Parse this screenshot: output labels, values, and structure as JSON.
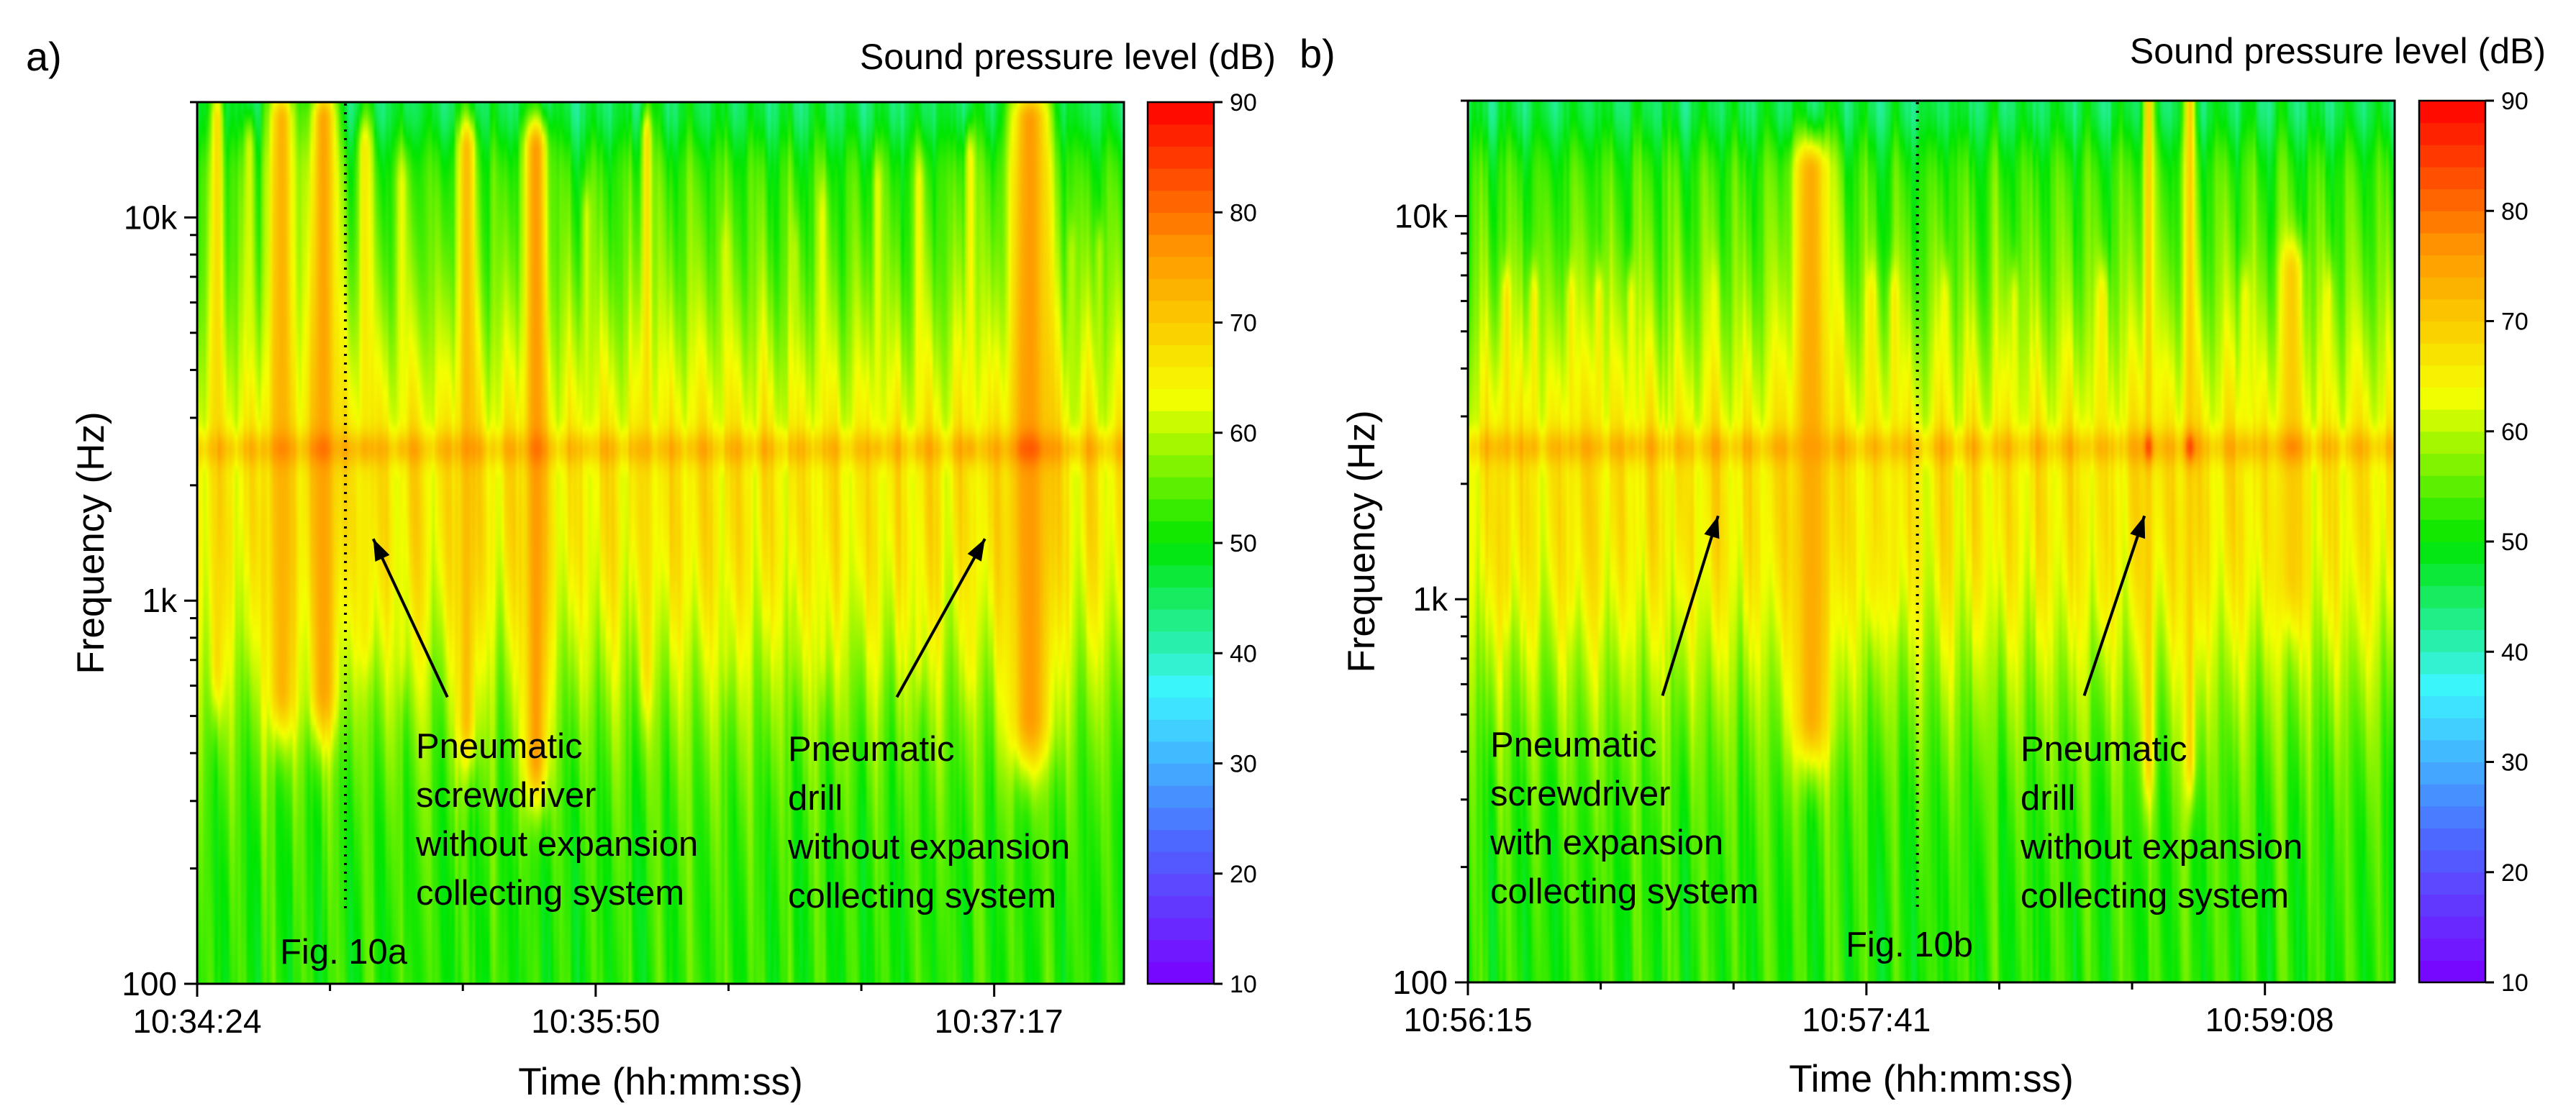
{
  "colors": {
    "colormap": [
      "#7b00ff",
      "#4b6bff",
      "#3cf5ff",
      "#00e600",
      "#f5ff00",
      "#ff9600",
      "#ff0000"
    ],
    "text": "#000000"
  },
  "chart_data": [
    {
      "type": "heatmap",
      "panel_label": "a)",
      "figure_label": "Fig. 10a",
      "title": "",
      "colorbar_label": "Sound pressure level (dB)",
      "colorbar_ticks": [
        "10",
        "20",
        "30",
        "40",
        "50",
        "60",
        "70",
        "80",
        "90"
      ],
      "clim": [
        10,
        90
      ],
      "xlabel": "Time (hh:mm:ss)",
      "ylabel": "Frequency (Hz)",
      "x_ticks": [
        "10:34:24",
        "10:35:50",
        "10:37:17"
      ],
      "y_ticks": [
        "100",
        "1k",
        "10k"
      ],
      "ylim_hz": [
        100,
        20000
      ],
      "x_range_s": [
        0,
        200
      ],
      "x_tick_seconds": [
        0,
        86,
        173
      ],
      "marker_time_s": 32,
      "carrier_band_hz": 2500,
      "bursts": [
        {
          "t": 4,
          "w": 1.5,
          "base": 68,
          "peak": 72,
          "lo": 700,
          "hi": 18000
        },
        {
          "t": 11,
          "w": 1.2,
          "base": 62,
          "peak": 70,
          "lo": 1000,
          "hi": 15000
        },
        {
          "t": 18,
          "w": 3.0,
          "base": 73,
          "peak": 78,
          "lo": 600,
          "hi": 18000
        },
        {
          "t": 27,
          "w": 3.0,
          "base": 75,
          "peak": 80,
          "lo": 600,
          "hi": 18000
        },
        {
          "t": 36,
          "w": 1.6,
          "base": 66,
          "peak": 74,
          "lo": 900,
          "hi": 15000
        },
        {
          "t": 44,
          "w": 1.2,
          "base": 63,
          "peak": 72,
          "lo": 800,
          "hi": 12000
        },
        {
          "t": 58,
          "w": 2.0,
          "base": 72,
          "peak": 77,
          "lo": 500,
          "hi": 15000
        },
        {
          "t": 73,
          "w": 2.6,
          "base": 76,
          "peak": 80,
          "lo": 400,
          "hi": 15000
        },
        {
          "t": 84,
          "w": 1.0,
          "base": 62,
          "peak": 70,
          "lo": 800,
          "hi": 10000
        },
        {
          "t": 97,
          "w": 1.2,
          "base": 68,
          "peak": 74,
          "lo": 700,
          "hi": 16000
        },
        {
          "t": 114,
          "w": 1.0,
          "base": 62,
          "peak": 68,
          "lo": 800,
          "hi": 8000
        },
        {
          "t": 129,
          "w": 1.0,
          "base": 60,
          "peak": 66,
          "lo": 900,
          "hi": 8000
        },
        {
          "t": 135,
          "w": 1.0,
          "base": 63,
          "peak": 70,
          "lo": 800,
          "hi": 10000
        },
        {
          "t": 147,
          "w": 1.0,
          "base": 63,
          "peak": 72,
          "lo": 800,
          "hi": 12000
        },
        {
          "t": 156,
          "w": 1.0,
          "base": 64,
          "peak": 72,
          "lo": 800,
          "hi": 12000
        },
        {
          "t": 167,
          "w": 1.2,
          "base": 65,
          "peak": 74,
          "lo": 800,
          "hi": 14000
        },
        {
          "t": 180,
          "w": 4.5,
          "base": 76,
          "peak": 82,
          "lo": 500,
          "hi": 18000
        },
        {
          "t": 189,
          "w": 1.0,
          "base": 60,
          "peak": 70,
          "lo": 900,
          "hi": 8000
        },
        {
          "t": 195,
          "w": 1.0,
          "base": 60,
          "peak": 70,
          "lo": 900,
          "hi": 8000
        }
      ],
      "annotations": [
        {
          "lines": [
            "Pneumatic",
            "screwdriver",
            "without expansion",
            "collecting system"
          ],
          "arrow_from_s": 54,
          "arrow_from_hz": 560,
          "arrow_to_s": 38,
          "arrow_to_hz": 1450
        },
        {
          "lines": [
            "Pneumatic",
            "drill",
            "without expansion",
            "collecting system"
          ],
          "arrow_from_s": 151,
          "arrow_from_hz": 560,
          "arrow_to_s": 170,
          "arrow_to_hz": 1450
        }
      ]
    },
    {
      "type": "heatmap",
      "panel_label": "b)",
      "figure_label": "Fig. 10b",
      "title": "",
      "colorbar_label": "Sound pressure level (dB)",
      "colorbar_ticks": [
        "10",
        "20",
        "30",
        "40",
        "50",
        "60",
        "70",
        "80",
        "90"
      ],
      "clim": [
        10,
        90
      ],
      "xlabel": "Time (hh:mm:ss)",
      "ylabel": "Frequency (Hz)",
      "x_ticks": [
        "10:56:15",
        "10:57:41",
        "10:59:08"
      ],
      "y_ticks": [
        "100",
        "1k",
        "10k"
      ],
      "ylim_hz": [
        100,
        20000
      ],
      "x_range_s": [
        0,
        200
      ],
      "x_tick_seconds": [
        0,
        86,
        173
      ],
      "marker_time_s": 97,
      "carrier_band_hz": 2500,
      "bursts": [
        {
          "t": 8,
          "w": 1.0,
          "base": 68,
          "peak": 74,
          "lo": 1200,
          "hi": 6000
        },
        {
          "t": 14,
          "w": 1.0,
          "base": 66,
          "peak": 73,
          "lo": 1200,
          "hi": 6000
        },
        {
          "t": 22,
          "w": 1.0,
          "base": 66,
          "peak": 73,
          "lo": 1200,
          "hi": 6000
        },
        {
          "t": 28,
          "w": 1.0,
          "base": 66,
          "peak": 72,
          "lo": 1200,
          "hi": 6000
        },
        {
          "t": 35,
          "w": 1.0,
          "base": 64,
          "peak": 72,
          "lo": 1200,
          "hi": 6000
        },
        {
          "t": 53,
          "w": 1.0,
          "base": 63,
          "peak": 70,
          "lo": 1200,
          "hi": 6000
        },
        {
          "t": 74,
          "w": 4.0,
          "base": 74,
          "peak": 76,
          "lo": 500,
          "hi": 13000
        },
        {
          "t": 87,
          "w": 1.2,
          "base": 66,
          "peak": 72,
          "lo": 1200,
          "hi": 6000
        },
        {
          "t": 92,
          "w": 1.2,
          "base": 66,
          "peak": 72,
          "lo": 1200,
          "hi": 6000
        },
        {
          "t": 103,
          "w": 1.0,
          "base": 64,
          "peak": 70,
          "lo": 1200,
          "hi": 6000
        },
        {
          "t": 118,
          "w": 1.0,
          "base": 63,
          "peak": 68,
          "lo": 1200,
          "hi": 6000
        },
        {
          "t": 137,
          "w": 1.2,
          "base": 66,
          "peak": 72,
          "lo": 1200,
          "hi": 6000
        },
        {
          "t": 147,
          "w": 1.2,
          "base": 70,
          "peak": 84,
          "lo": 400,
          "hi": 20000
        },
        {
          "t": 156,
          "w": 1.2,
          "base": 70,
          "peak": 84,
          "lo": 400,
          "hi": 20000
        },
        {
          "t": 168,
          "w": 1.2,
          "base": 64,
          "peak": 72,
          "lo": 1200,
          "hi": 6000
        },
        {
          "t": 178,
          "w": 2.5,
          "base": 70,
          "peak": 78,
          "lo": 1200,
          "hi": 7000
        },
        {
          "t": 186,
          "w": 1.0,
          "base": 64,
          "peak": 70,
          "lo": 1200,
          "hi": 6000
        }
      ],
      "annotations": [
        {
          "lines": [
            "Pneumatic",
            "screwdriver",
            "with expansion",
            "collecting system"
          ],
          "arrow_from_s": 42,
          "arrow_from_hz": 560,
          "arrow_to_s": 54,
          "arrow_to_hz": 1650
        },
        {
          "lines": [
            "Pneumatic",
            "drill",
            "without expansion",
            "collecting system"
          ],
          "arrow_from_s": 133,
          "arrow_from_hz": 560,
          "arrow_to_s": 146,
          "arrow_to_hz": 1650
        }
      ]
    }
  ]
}
